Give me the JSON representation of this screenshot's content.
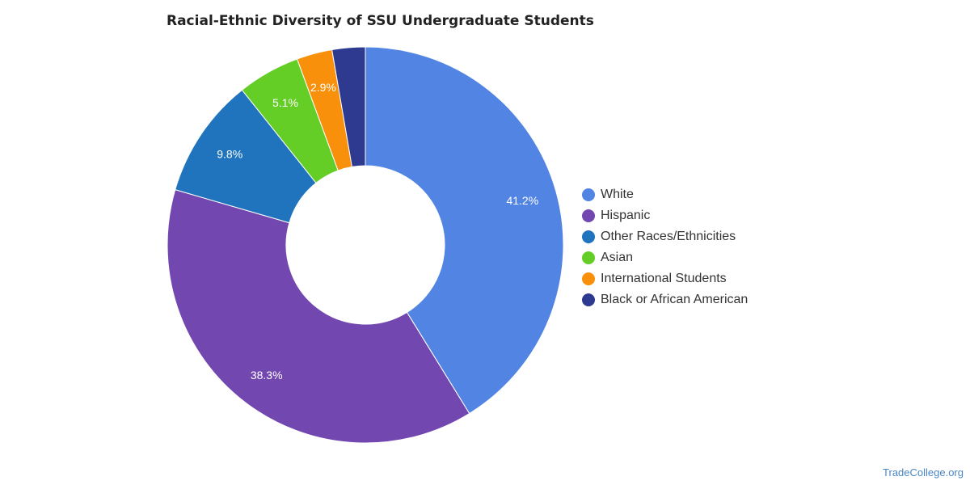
{
  "chart_data": {
    "type": "pie",
    "title": "Racial-Ethnic Diversity of SSU Undergraduate Students",
    "categories": [
      "White",
      "Hispanic",
      "Other Races/Ethnicities",
      "Asian",
      "International Students",
      "Black or African American"
    ],
    "values": [
      41.2,
      38.3,
      9.8,
      5.1,
      2.9,
      2.7
    ],
    "data_labels": [
      "41.2%",
      "38.3%",
      "9.8%",
      "5.1%",
      "2.9%",
      ""
    ],
    "colors": [
      "#5285e3",
      "#7347b0",
      "#1f74bd",
      "#64cd26",
      "#f8900c",
      "#2d3a8f"
    ],
    "donut": true,
    "legend_position": "right"
  },
  "watermark": "TradeCollege.org"
}
